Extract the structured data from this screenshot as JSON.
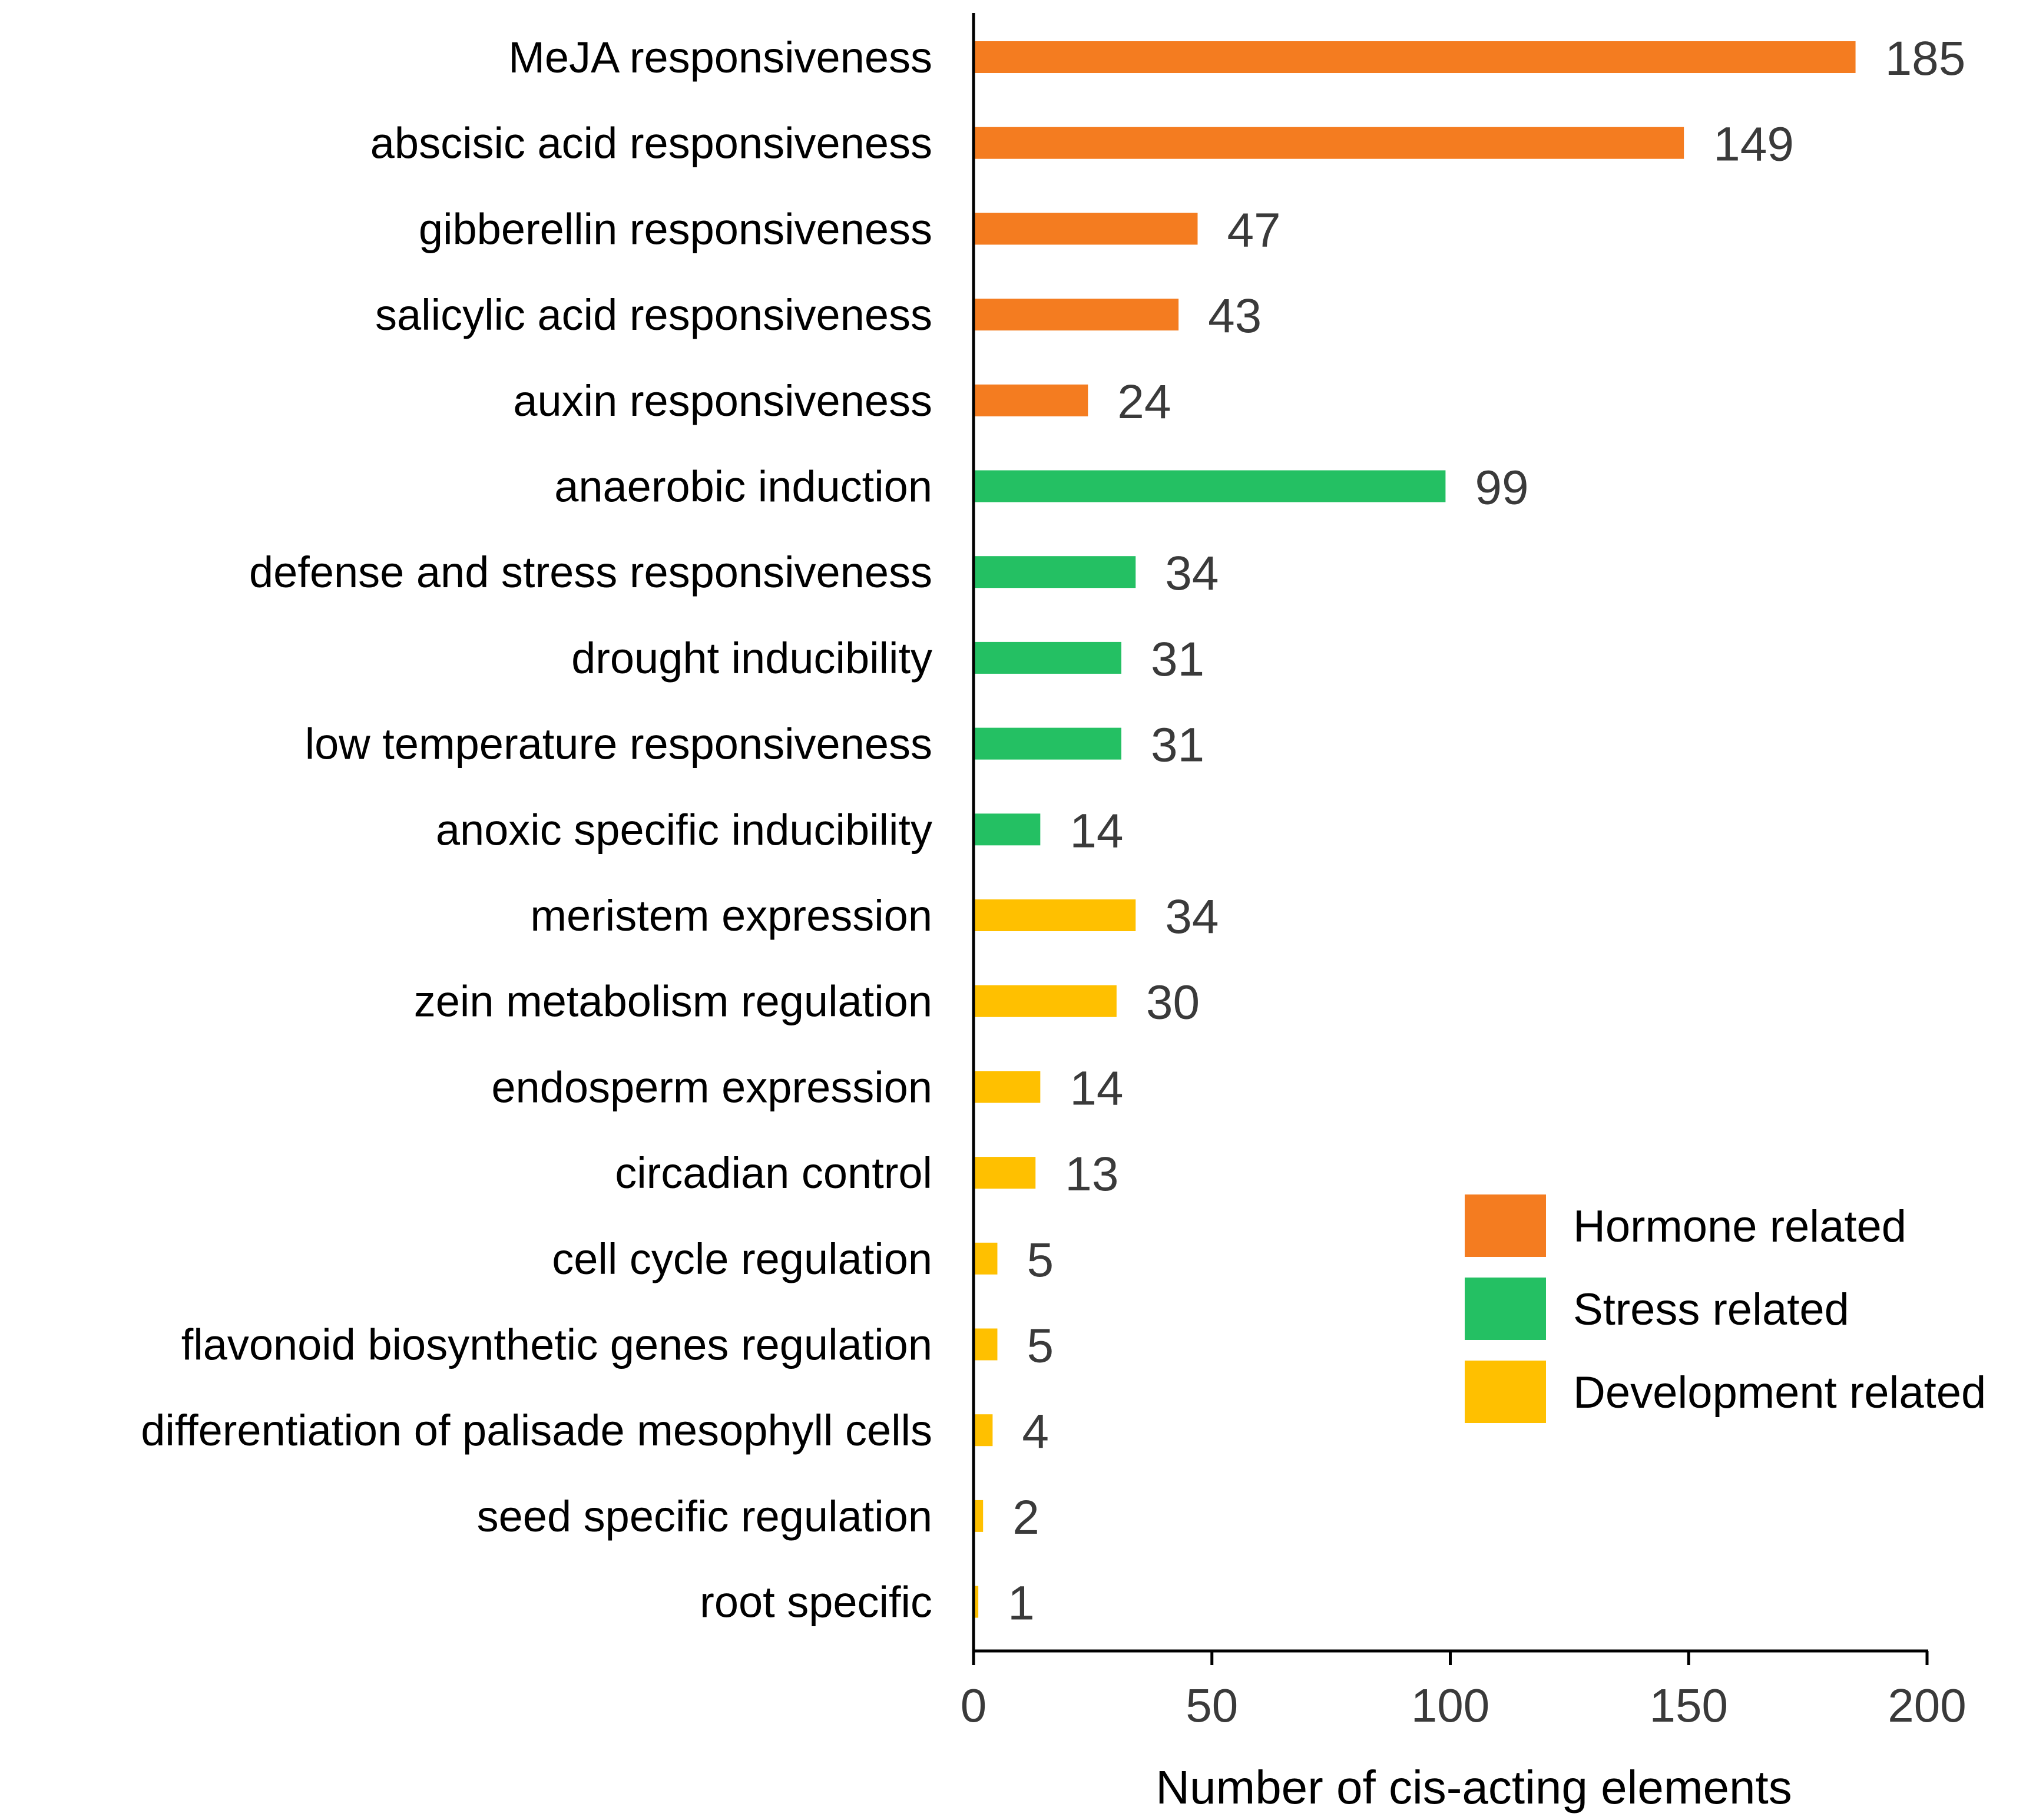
{
  "chart_data": {
    "type": "bar",
    "orientation": "horizontal",
    "title": "",
    "xlabel": "Number of cis-acting elements",
    "ylabel": "",
    "xlim": [
      0,
      200
    ],
    "xticks": [
      0,
      50,
      100,
      150,
      200
    ],
    "grid": false,
    "legend_position": "bottom-right",
    "groups": [
      {
        "name": "Hormone related",
        "color": "#F47C20"
      },
      {
        "name": "Stress related",
        "color": "#24C063"
      },
      {
        "name": "Development related",
        "color": "#FFC000"
      }
    ],
    "categories": [
      "MeJA responsiveness",
      "abscisic acid responsiveness",
      "gibberellin responsiveness",
      "salicylic acid responsiveness",
      "auxin responsiveness",
      "anaerobic induction",
      "defense and stress responsiveness",
      "drought inducibility",
      "low temperature responsiveness",
      "anoxic specific inducibility",
      "meristem expression",
      "zein metabolism regulation",
      "endosperm expression",
      "circadian control",
      "cell cycle regulation",
      "flavonoid biosynthetic genes regulation",
      "differentiation of  palisade mesophyll cells",
      "seed specific regulation",
      "root specific"
    ],
    "values": [
      185,
      149,
      47,
      43,
      24,
      99,
      34,
      31,
      31,
      14,
      34,
      30,
      14,
      13,
      5,
      5,
      4,
      2,
      1
    ],
    "group_index": [
      0,
      0,
      0,
      0,
      0,
      1,
      1,
      1,
      1,
      1,
      2,
      2,
      2,
      2,
      2,
      2,
      2,
      2,
      2
    ]
  }
}
